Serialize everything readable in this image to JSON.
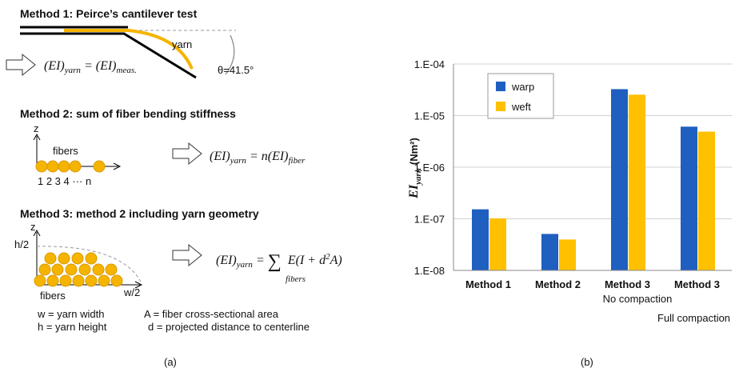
{
  "diagram": {
    "methods": [
      {
        "title": "Method 1: Peirce’s cantilever test",
        "labels": [
          "yarn",
          "θ=41.5°"
        ],
        "equation": [
          "(EI)",
          "yarn",
          " = (EI)",
          "meas."
        ]
      },
      {
        "title": "Method 2: sum of fiber bending stiffness",
        "labels": [
          "z",
          "fibers",
          "1 2 3 4 ··· n"
        ],
        "equation": [
          "(EI)",
          "yarn",
          " = n(EI)",
          "fiber"
        ]
      },
      {
        "title": "Method 3: method 2 including yarn geometry",
        "labels": [
          "z",
          "h/2",
          "w/2",
          "fibers"
        ],
        "equation": [
          "(EI)",
          "yarn",
          " = ",
          "∑",
          "fibers",
          "E(I + d",
          "2",
          "A)"
        ]
      }
    ],
    "definitions": [
      "w = yarn width",
      "A = fiber cross-sectional area",
      "h = yarn height",
      "d = projected distance to centerline"
    ],
    "panel_labels": [
      "(a)",
      "(b)"
    ]
  },
  "chart_data": {
    "type": "bar",
    "y_label": [
      "EI",
      "yarn",
      "(Nm²)"
    ],
    "categories": [
      "Method 1",
      "Method 2",
      "Method 3",
      "Method 3"
    ],
    "annotations": [
      "No compaction",
      "Full compaction"
    ],
    "series": [
      {
        "name": "warp",
        "color": "#1f5fbf",
        "values": [
          1.5e-07,
          5e-08,
          3.2e-05,
          6e-06
        ]
      },
      {
        "name": "weft",
        "color": "#ffc000",
        "values": [
          1e-07,
          3.9e-08,
          2.5e-05,
          4.8e-06
        ]
      }
    ],
    "log_scale": true,
    "ylim": [
      1e-08,
      0.0001
    ],
    "yticks": [
      {
        "value": 1e-08,
        "label": "1.E-08"
      },
      {
        "value": 1e-07,
        "label": "1.E-07"
      },
      {
        "value": 1e-06,
        "label": "1.E-06"
      },
      {
        "value": 1e-05,
        "label": "1.E-05"
      },
      {
        "value": 0.0001,
        "label": "1.E-04"
      }
    ],
    "grid": true,
    "legend": "top-left"
  }
}
